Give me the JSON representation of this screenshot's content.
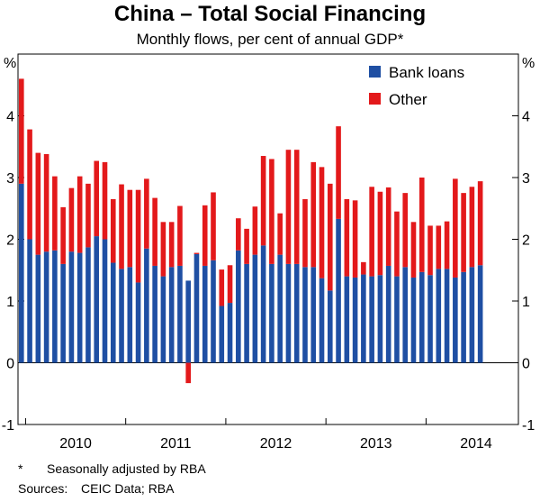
{
  "chart_data": {
    "type": "bar",
    "stacked": true,
    "title": "China – Total Social Financing",
    "subtitle": "Monthly flows, per cent of annual GDP*",
    "ylabel_left": "%",
    "ylabel_right": "%",
    "ylim": [
      -1,
      5
    ],
    "yticks": [
      "-1",
      "0",
      "1",
      "2",
      "3",
      "4"
    ],
    "year_labels": [
      "2010",
      "2011",
      "2012",
      "2013",
      "2014"
    ],
    "start_month": "2009-12",
    "series": [
      {
        "name": "Bank loans",
        "color": "#1f4fa3",
        "values": [
          2.9,
          2.0,
          1.75,
          1.8,
          1.82,
          1.6,
          1.8,
          1.78,
          1.87,
          2.05,
          2.0,
          1.62,
          1.52,
          1.55,
          1.3,
          1.85,
          1.57,
          1.4,
          1.55,
          1.57,
          1.33,
          1.76,
          1.57,
          1.66,
          0.92,
          0.97,
          1.82,
          1.6,
          1.75,
          1.9,
          1.6,
          1.75,
          1.6,
          1.6,
          1.55,
          1.55,
          1.37,
          1.17,
          2.33,
          1.4,
          1.38,
          1.43,
          1.4,
          1.42,
          1.57,
          1.4,
          1.55,
          1.38,
          1.47,
          1.42,
          1.52,
          1.52,
          1.38,
          1.47,
          1.55,
          1.58
        ]
      },
      {
        "name": "Other",
        "color": "#e3191b",
        "values": [
          1.7,
          1.78,
          1.65,
          1.58,
          1.2,
          0.92,
          1.03,
          1.24,
          1.03,
          1.22,
          1.25,
          1.03,
          1.37,
          1.25,
          1.5,
          1.13,
          1.1,
          0.88,
          0.73,
          0.97,
          -0.33,
          0.02,
          0.98,
          1.1,
          0.59,
          0.61,
          0.52,
          0.57,
          0.78,
          1.45,
          1.7,
          0.67,
          1.85,
          1.85,
          1.1,
          1.7,
          1.8,
          1.73,
          1.5,
          1.25,
          1.25,
          0.2,
          1.45,
          1.35,
          1.27,
          1.05,
          1.2,
          0.9,
          1.53,
          0.8,
          0.7,
          0.77,
          1.6,
          1.28,
          1.3,
          1.36
        ]
      }
    ],
    "legend_position": "top-right",
    "grid": false
  },
  "footnotes": {
    "asterisk_marker": "*",
    "asterisk_text": "Seasonally adjusted by RBA",
    "sources_label": "Sources:",
    "sources_text": "CEIC Data; RBA"
  }
}
